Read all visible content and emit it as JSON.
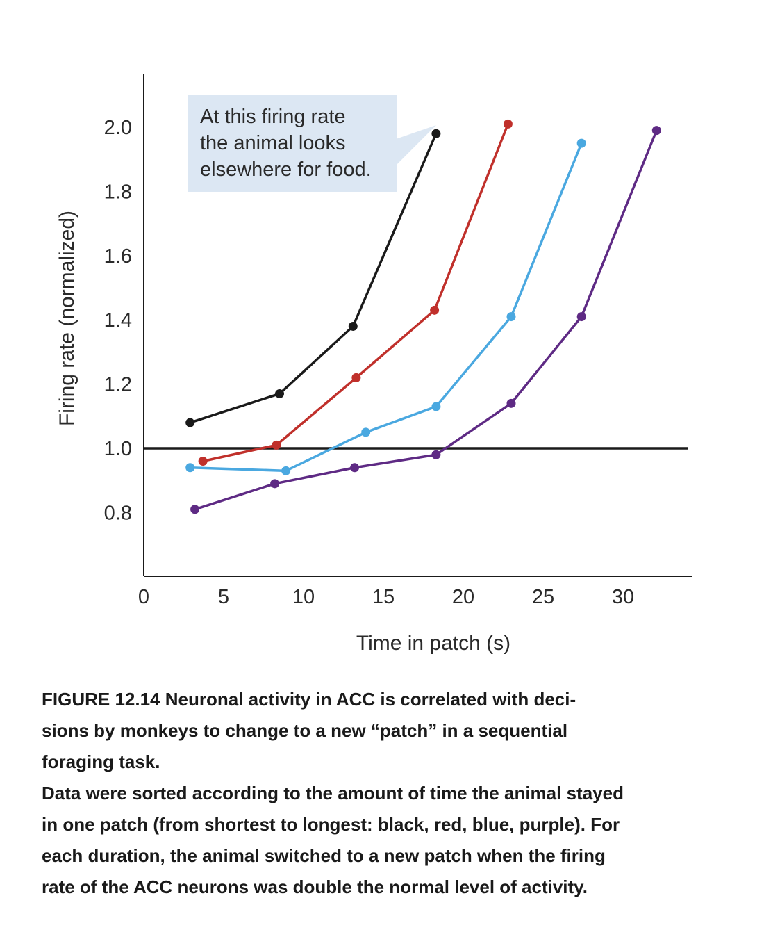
{
  "chart_data": {
    "type": "line",
    "title": "",
    "xlabel": "Time in patch (s)",
    "ylabel": "Firing rate (normalized)",
    "xlim": [
      0,
      34
    ],
    "ylim": [
      0.6,
      2.15
    ],
    "xticks": [
      0,
      5,
      10,
      15,
      20,
      25,
      30
    ],
    "yticks": [
      0.8,
      1.0,
      1.2,
      1.4,
      1.6,
      1.8,
      2.0
    ],
    "ytick_labels": [
      "0.8",
      "1.0",
      "1.2",
      "1.4",
      "1.6",
      "1.8",
      "2.0"
    ],
    "reference_line": {
      "y": 1.0,
      "color": "#1a1a1a"
    },
    "grid": false,
    "series": [
      {
        "name": "black",
        "color": "#1a1a1a",
        "x": [
          2.9,
          8.5,
          13.1,
          18.3
        ],
        "y": [
          1.08,
          1.17,
          1.38,
          1.98
        ]
      },
      {
        "name": "red",
        "color": "#c0302b",
        "x": [
          3.7,
          8.3,
          13.3,
          18.2,
          22.8
        ],
        "y": [
          0.96,
          1.01,
          1.22,
          1.43,
          2.01
        ]
      },
      {
        "name": "blue",
        "color": "#4aa8e0",
        "x": [
          2.9,
          8.9,
          13.9,
          18.3,
          23.0,
          27.4
        ],
        "y": [
          0.94,
          0.93,
          1.05,
          1.13,
          1.41,
          1.95
        ]
      },
      {
        "name": "purple",
        "color": "#5e2a84",
        "x": [
          3.2,
          8.2,
          13.2,
          18.3,
          23.0,
          27.4,
          32.1
        ],
        "y": [
          0.81,
          0.89,
          0.94,
          0.98,
          1.14,
          1.41,
          1.99
        ]
      }
    ],
    "annotation": {
      "lines": [
        "At this firing rate",
        "the animal looks",
        "elsewhere for food."
      ],
      "fill": "#dce7f3",
      "points_to_series": "black"
    }
  },
  "caption": {
    "title": "FIGURE 12.14 Neuronal activity in ACC is correlated with deci-sions by monkeys to change to a new “patch” in a sequential foraging task.",
    "title_lines": [
      "FIGURE 12.14 Neuronal activity in ACC is correlated with deci-",
      "sions by monkeys to change to a new “patch” in a sequential",
      "foraging task."
    ],
    "body_lines": [
      "Data were sorted according to the amount of time the animal stayed",
      "in one patch (from shortest to longest: black, red, blue, purple). For",
      "each duration, the animal switched to a new patch when the firing",
      "rate of the ACC neurons was double the normal level of activity."
    ]
  }
}
